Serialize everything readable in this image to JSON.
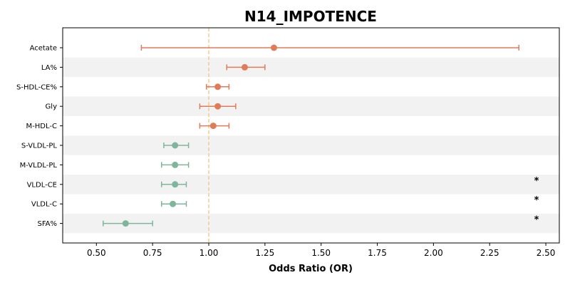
{
  "chart_data": {
    "type": "forest",
    "title": "N14_IMPOTENCE",
    "xlabel": "Odds Ratio (OR)",
    "xlim": [
      0.35,
      2.56
    ],
    "xticks": [
      "0.50",
      "0.75",
      "1.00",
      "1.25",
      "1.50",
      "1.75",
      "2.00",
      "2.25",
      "2.50"
    ],
    "xtick_values": [
      0.5,
      0.75,
      1.0,
      1.25,
      1.5,
      1.75,
      2.0,
      2.25,
      2.5
    ],
    "reference_line": 1.0,
    "colors": {
      "positive": "#e07b5a",
      "negative": "#7fb59b",
      "reference": "#f5c98a",
      "band": "#f2f2f2"
    },
    "rows": [
      {
        "label": "Acetate",
        "or": 1.29,
        "ci": [
          0.7,
          2.38
        ],
        "direction": "positive",
        "significant": ""
      },
      {
        "label": "LA%",
        "or": 1.16,
        "ci": [
          1.08,
          1.25
        ],
        "direction": "positive",
        "significant": ""
      },
      {
        "label": "S-HDL-CE%",
        "or": 1.04,
        "ci": [
          0.99,
          1.09
        ],
        "direction": "positive",
        "significant": ""
      },
      {
        "label": "Gly",
        "or": 1.04,
        "ci": [
          0.96,
          1.12
        ],
        "direction": "positive",
        "significant": ""
      },
      {
        "label": "M-HDL-C",
        "or": 1.02,
        "ci": [
          0.96,
          1.09
        ],
        "direction": "positive",
        "significant": ""
      },
      {
        "label": "S-VLDL-PL",
        "or": 0.85,
        "ci": [
          0.8,
          0.91
        ],
        "direction": "negative",
        "significant": ""
      },
      {
        "label": "M-VLDL-PL",
        "or": 0.85,
        "ci": [
          0.79,
          0.91
        ],
        "direction": "negative",
        "significant": ""
      },
      {
        "label": "VLDL-CE",
        "or": 0.85,
        "ci": [
          0.79,
          0.9
        ],
        "direction": "negative",
        "significant": "*"
      },
      {
        "label": "VLDL-C",
        "or": 0.84,
        "ci": [
          0.79,
          0.9
        ],
        "direction": "negative",
        "significant": "*"
      },
      {
        "label": "SFA%",
        "or": 0.63,
        "ci": [
          0.53,
          0.75
        ],
        "direction": "negative",
        "significant": "*"
      }
    ]
  }
}
